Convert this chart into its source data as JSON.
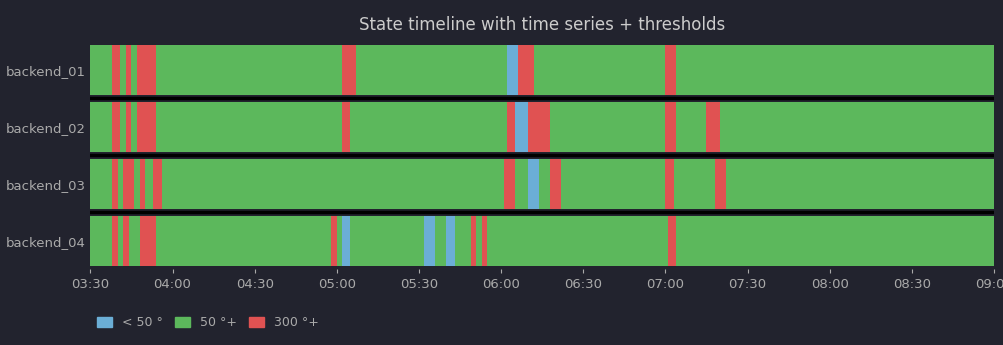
{
  "title": "State timeline with time series + thresholds",
  "bg_color": "#22232e",
  "plot_bg_color": "#22232e",
  "title_color": "#cccccc",
  "tick_color": "#aaaaaa",
  "label_color": "#aaaaaa",
  "rows": [
    "backend_01",
    "backend_02",
    "backend_03",
    "backend_04"
  ],
  "xlim": [
    210,
    540
  ],
  "xtick_step": 30,
  "colors": {
    "green": "#5cb85c",
    "blue": "#6baed6",
    "red": "#e05252"
  },
  "legend_labels": [
    "< 50 °",
    "50 °+",
    "300 °+"
  ],
  "legend_colors": [
    "#6baed6",
    "#5cb85c",
    "#e05252"
  ],
  "segments": {
    "backend_01": [
      [
        210,
        218,
        "green"
      ],
      [
        218,
        220,
        "red"
      ],
      [
        220,
        222,
        "green"
      ],
      [
        222,
        224,
        "red"
      ],
      [
        224,
        228,
        "green"
      ],
      [
        228,
        234,
        "red"
      ],
      [
        234,
        298,
        "green"
      ],
      [
        298,
        300,
        "red"
      ],
      [
        300,
        302,
        "green"
      ],
      [
        302,
        305,
        "blue"
      ],
      [
        305,
        332,
        "green"
      ],
      [
        332,
        336,
        "blue"
      ],
      [
        336,
        340,
        "green"
      ],
      [
        340,
        343,
        "blue"
      ],
      [
        343,
        349,
        "green"
      ],
      [
        349,
        351,
        "red"
      ],
      [
        351,
        353,
        "green"
      ],
      [
        353,
        355,
        "red"
      ],
      [
        355,
        421,
        "green"
      ],
      [
        421,
        424,
        "red"
      ],
      [
        424,
        540,
        "green"
      ]
    ],
    "backend_02": [
      [
        210,
        218,
        "green"
      ],
      [
        218,
        220,
        "red"
      ],
      [
        220,
        222,
        "green"
      ],
      [
        222,
        226,
        "red"
      ],
      [
        226,
        228,
        "green"
      ],
      [
        228,
        230,
        "red"
      ],
      [
        230,
        233,
        "green"
      ],
      [
        233,
        236,
        "red"
      ],
      [
        236,
        361,
        "green"
      ],
      [
        361,
        365,
        "red"
      ],
      [
        365,
        370,
        "green"
      ],
      [
        370,
        374,
        "blue"
      ],
      [
        374,
        378,
        "green"
      ],
      [
        378,
        382,
        "red"
      ],
      [
        382,
        420,
        "green"
      ],
      [
        420,
        423,
        "red"
      ],
      [
        423,
        438,
        "green"
      ],
      [
        438,
        442,
        "red"
      ],
      [
        442,
        540,
        "green"
      ]
    ],
    "backend_03": [
      [
        210,
        218,
        "green"
      ],
      [
        218,
        221,
        "red"
      ],
      [
        221,
        223,
        "green"
      ],
      [
        223,
        225,
        "red"
      ],
      [
        225,
        227,
        "green"
      ],
      [
        227,
        229,
        "red"
      ],
      [
        229,
        234,
        "red"
      ],
      [
        234,
        302,
        "green"
      ],
      [
        302,
        305,
        "red"
      ],
      [
        305,
        362,
        "green"
      ],
      [
        362,
        365,
        "red"
      ],
      [
        365,
        370,
        "blue"
      ],
      [
        370,
        378,
        "red"
      ],
      [
        378,
        420,
        "green"
      ],
      [
        420,
        424,
        "red"
      ],
      [
        424,
        435,
        "green"
      ],
      [
        435,
        440,
        "red"
      ],
      [
        440,
        540,
        "green"
      ]
    ],
    "backend_04": [
      [
        210,
        218,
        "green"
      ],
      [
        218,
        221,
        "red"
      ],
      [
        221,
        223,
        "green"
      ],
      [
        223,
        225,
        "red"
      ],
      [
        225,
        227,
        "green"
      ],
      [
        227,
        230,
        "red"
      ],
      [
        230,
        234,
        "red"
      ],
      [
        234,
        302,
        "green"
      ],
      [
        302,
        307,
        "red"
      ],
      [
        307,
        362,
        "green"
      ],
      [
        362,
        366,
        "blue"
      ],
      [
        366,
        372,
        "red"
      ],
      [
        372,
        420,
        "green"
      ],
      [
        420,
        424,
        "red"
      ],
      [
        424,
        540,
        "green"
      ]
    ]
  }
}
